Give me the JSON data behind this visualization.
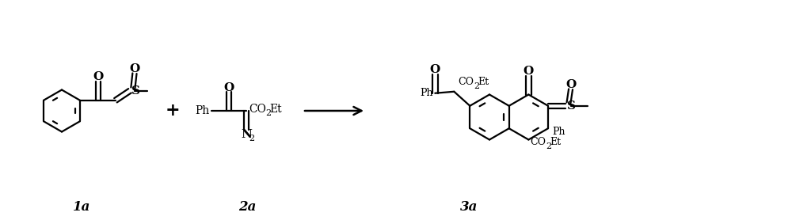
{
  "background_color": "#ffffff",
  "line_color": "#000000",
  "line_width": 1.6,
  "fig_width": 10.0,
  "fig_height": 2.78,
  "dpi": 100,
  "label_1a": "1a",
  "label_2a": "2a",
  "label_3a": "3a",
  "font_size_label": 12,
  "font_size_text": 10,
  "font_size_sub": 8
}
